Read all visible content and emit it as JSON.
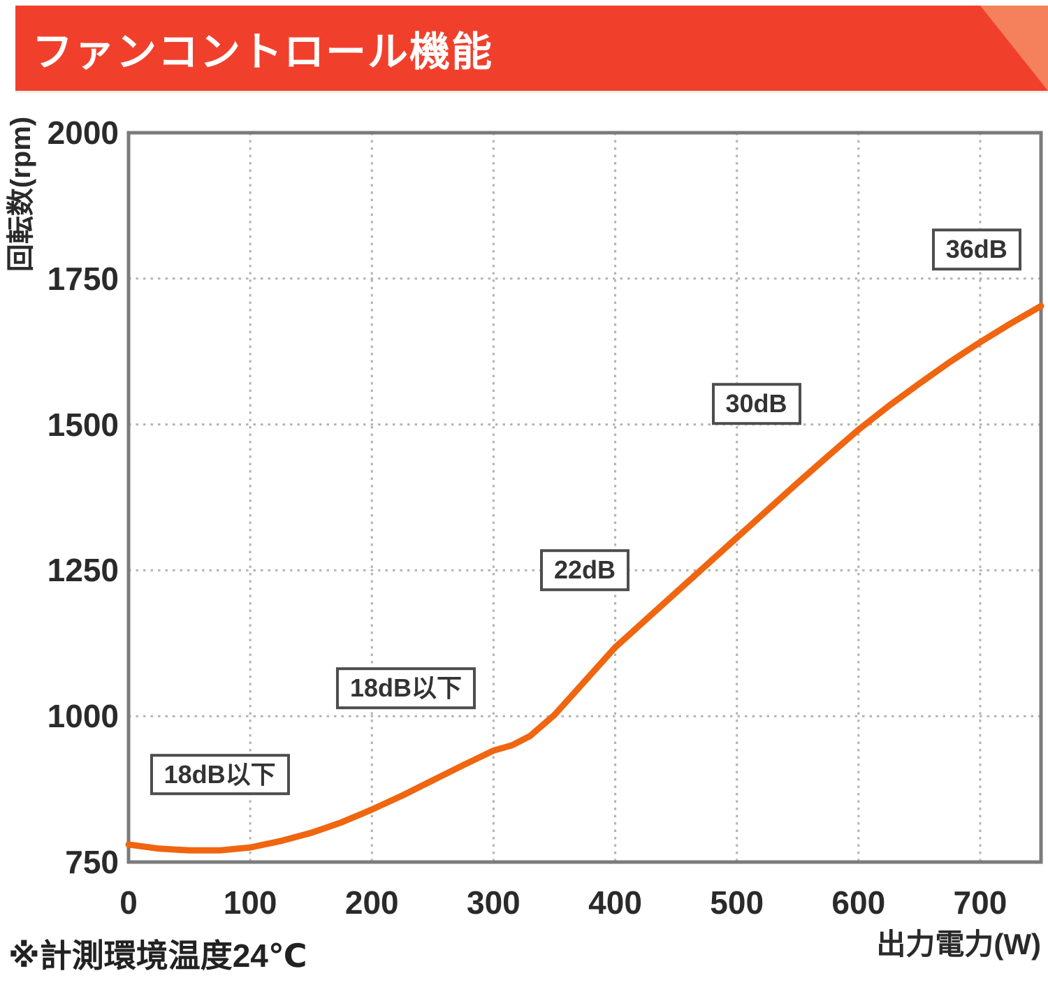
{
  "header": {
    "title": "ファンコントロール機能",
    "banner_color": "#F0402C",
    "banner_corner_color": "#F4815B"
  },
  "footnote": "※計測環境温度24℃",
  "chart_data": {
    "type": "line",
    "title": "ファンコントロール機能",
    "xlabel": "出力電力(W)",
    "ylabel": "回転数(rpm)",
    "xlim": [
      0,
      750
    ],
    "ylim": [
      750,
      2000
    ],
    "x_ticks": [
      0,
      100,
      200,
      300,
      400,
      500,
      600,
      700
    ],
    "y_ticks": [
      750,
      1000,
      1250,
      1500,
      1750,
      2000
    ],
    "grid": true,
    "legend": "none",
    "line_color": "#F0650F",
    "grid_color": "#b3b3b3",
    "axis_color": "#7b7b7b",
    "series": [
      {
        "name": "fan-rpm",
        "x": [
          0,
          25,
          50,
          75,
          100,
          125,
          150,
          175,
          200,
          225,
          250,
          275,
          300,
          315,
          330,
          350,
          375,
          400,
          425,
          450,
          475,
          500,
          525,
          550,
          575,
          600,
          625,
          650,
          675,
          700,
          725,
          750
        ],
        "y": [
          780,
          773,
          770,
          770,
          775,
          786,
          800,
          818,
          840,
          864,
          890,
          916,
          941,
          950,
          966,
          1002,
          1060,
          1118,
          1165,
          1212,
          1259,
          1306,
          1353,
          1400,
          1446,
          1491,
          1532,
          1570,
          1607,
          1641,
          1673,
          1703
        ]
      }
    ],
    "annotations": [
      {
        "label": "18dB以下",
        "x": 75,
        "y": 900
      },
      {
        "label": "18dB以下",
        "x": 228,
        "y": 1048
      },
      {
        "label": "22dB",
        "x": 375,
        "y": 1250
      },
      {
        "label": "30dB",
        "x": 516,
        "y": 1535
      },
      {
        "label": "36dB",
        "x": 697,
        "y": 1800
      }
    ]
  }
}
